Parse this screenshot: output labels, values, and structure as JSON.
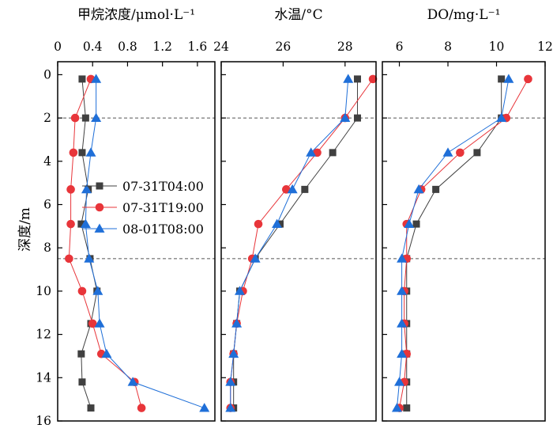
{
  "chart_data": [
    {
      "type": "line",
      "title": "甲烷浓度/μmol·L⁻¹",
      "xlim": [
        0,
        1.8
      ],
      "xticks": [
        "0",
        "0.4",
        "0.8",
        "1.2",
        "1.6"
      ],
      "xtick_values": [
        0,
        0.4,
        0.8,
        1.2,
        1.6
      ],
      "ylabel": "深度/m",
      "ylim": [
        16,
        -0.6
      ],
      "yticks": [
        "0",
        "2",
        "4",
        "6",
        "8",
        "10",
        "12",
        "14",
        "16"
      ],
      "ytick_values": [
        0,
        2,
        4,
        6,
        8,
        10,
        12,
        14,
        16
      ],
      "reference_lines": [
        2,
        8.5
      ],
      "legend_position": "left-middle",
      "series": [
        {
          "name": "07-31T04:00",
          "color": "#404040",
          "marker": "square",
          "points": [
            [
              0.28,
              0.2
            ],
            [
              0.32,
              2.0
            ],
            [
              0.28,
              3.6
            ],
            [
              0.35,
              5.3
            ],
            [
              0.27,
              6.9
            ],
            [
              0.37,
              8.5
            ],
            [
              0.45,
              10.0
            ],
            [
              0.38,
              11.5
            ],
            [
              0.27,
              12.9
            ],
            [
              0.28,
              14.2
            ],
            [
              0.38,
              15.4
            ]
          ]
        },
        {
          "name": "07-31T19:00",
          "color": "#e8353a",
          "marker": "circle",
          "points": [
            [
              0.38,
              0.2
            ],
            [
              0.2,
              2.0
            ],
            [
              0.18,
              3.6
            ],
            [
              0.15,
              5.3
            ],
            [
              0.15,
              6.9
            ],
            [
              0.13,
              8.5
            ],
            [
              0.28,
              10.0
            ],
            [
              0.4,
              11.5
            ],
            [
              0.5,
              12.9
            ],
            [
              0.88,
              14.2
            ],
            [
              0.96,
              15.4
            ]
          ]
        },
        {
          "name": "08-01T08:00",
          "color": "#1f6fd8",
          "marker": "triangle",
          "points": [
            [
              0.44,
              0.2
            ],
            [
              0.44,
              2.0
            ],
            [
              0.38,
              3.6
            ],
            [
              0.33,
              5.3
            ],
            [
              0.32,
              6.9
            ],
            [
              0.36,
              8.5
            ],
            [
              0.46,
              10.0
            ],
            [
              0.48,
              11.5
            ],
            [
              0.56,
              12.9
            ],
            [
              0.86,
              14.2
            ],
            [
              1.68,
              15.4
            ]
          ]
        }
      ]
    },
    {
      "type": "line",
      "title": "水温/°C",
      "xlim": [
        24,
        29
      ],
      "xticks": [
        "24",
        "26",
        "28"
      ],
      "xtick_values": [
        24,
        26,
        28
      ],
      "ylim": [
        16,
        -0.6
      ],
      "reference_lines": [
        2,
        8.5
      ],
      "series": [
        {
          "name": "07-31T04:00",
          "color": "#404040",
          "marker": "square",
          "points": [
            [
              28.4,
              0.2
            ],
            [
              28.4,
              2.0
            ],
            [
              27.6,
              3.6
            ],
            [
              26.7,
              5.3
            ],
            [
              25.9,
              6.9
            ],
            [
              25.1,
              8.5
            ],
            [
              24.6,
              10.0
            ],
            [
              24.5,
              11.5
            ],
            [
              24.4,
              12.9
            ],
            [
              24.4,
              14.2
            ],
            [
              24.4,
              15.4
            ]
          ]
        },
        {
          "name": "07-31T19:00",
          "color": "#e8353a",
          "marker": "circle",
          "points": [
            [
              28.9,
              0.2
            ],
            [
              28.0,
              2.0
            ],
            [
              27.1,
              3.6
            ],
            [
              26.1,
              5.3
            ],
            [
              25.2,
              6.9
            ],
            [
              25.0,
              8.5
            ],
            [
              24.7,
              10.0
            ],
            [
              24.5,
              11.5
            ],
            [
              24.4,
              12.9
            ],
            [
              24.3,
              14.2
            ],
            [
              24.3,
              15.4
            ]
          ]
        },
        {
          "name": "08-01T08:00",
          "color": "#1f6fd8",
          "marker": "triangle",
          "points": [
            [
              28.1,
              0.2
            ],
            [
              28.0,
              2.0
            ],
            [
              26.9,
              3.6
            ],
            [
              26.3,
              5.3
            ],
            [
              25.8,
              6.9
            ],
            [
              25.1,
              8.5
            ],
            [
              24.6,
              10.0
            ],
            [
              24.5,
              11.5
            ],
            [
              24.4,
              12.9
            ],
            [
              24.3,
              14.2
            ],
            [
              24.3,
              15.4
            ]
          ]
        }
      ]
    },
    {
      "type": "line",
      "title": "DO/mg·L⁻¹",
      "xlim": [
        5.3,
        12
      ],
      "xticks": [
        "6",
        "8",
        "10",
        "12"
      ],
      "xtick_values": [
        6,
        8,
        10,
        12
      ],
      "ylim": [
        16,
        -0.6
      ],
      "reference_lines": [
        2,
        8.5
      ],
      "series": [
        {
          "name": "07-31T04:00",
          "color": "#404040",
          "marker": "square",
          "points": [
            [
              10.2,
              0.2
            ],
            [
              10.2,
              2.0
            ],
            [
              9.2,
              3.6
            ],
            [
              7.5,
              5.3
            ],
            [
              6.7,
              6.9
            ],
            [
              6.3,
              8.5
            ],
            [
              6.3,
              10.0
            ],
            [
              6.3,
              11.5
            ],
            [
              6.3,
              12.9
            ],
            [
              6.3,
              14.2
            ],
            [
              6.3,
              15.4
            ]
          ]
        },
        {
          "name": "07-31T19:00",
          "color": "#e8353a",
          "marker": "circle",
          "points": [
            [
              11.3,
              0.2
            ],
            [
              10.4,
              2.0
            ],
            [
              8.5,
              3.6
            ],
            [
              6.9,
              5.3
            ],
            [
              6.3,
              6.9
            ],
            [
              6.3,
              8.5
            ],
            [
              6.2,
              10.0
            ],
            [
              6.2,
              11.5
            ],
            [
              6.3,
              12.9
            ],
            [
              6.2,
              14.2
            ],
            [
              6.0,
              15.4
            ]
          ]
        },
        {
          "name": "08-01T08:00",
          "color": "#1f6fd8",
          "marker": "triangle",
          "points": [
            [
              10.5,
              0.2
            ],
            [
              10.2,
              2.0
            ],
            [
              8.0,
              3.6
            ],
            [
              6.8,
              5.3
            ],
            [
              6.4,
              6.9
            ],
            [
              6.1,
              8.5
            ],
            [
              6.1,
              10.0
            ],
            [
              6.1,
              11.5
            ],
            [
              6.1,
              12.9
            ],
            [
              6.0,
              14.2
            ],
            [
              5.9,
              15.4
            ]
          ]
        }
      ]
    }
  ]
}
